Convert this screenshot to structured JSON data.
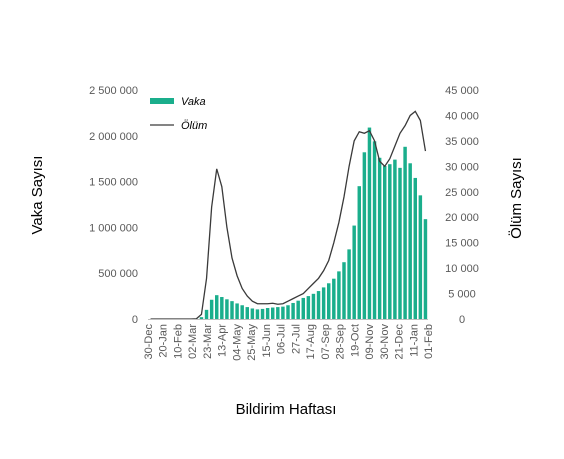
{
  "chart_data": {
    "type": "bar",
    "xlabel": "Bildirim Haftası",
    "ylabel": "Vaka Sayısı",
    "y2label": "Ölüm Sayısı",
    "x_tick_labels": [
      "30-Dec",
      "20-Jan",
      "10-Feb",
      "02-Mar",
      "23-Mar",
      "13-Apr",
      "04-May",
      "25-May",
      "15-Jun",
      "06-Jul",
      "27-Jul",
      "17-Aug",
      "07-Sep",
      "28-Sep",
      "19-Oct",
      "09-Nov",
      "30-Nov",
      "21-Dec",
      "11-Jan",
      "01-Feb"
    ],
    "ylim": [
      0,
      2500000
    ],
    "y_ticks": [
      0,
      500000,
      1000000,
      1500000,
      2000000,
      2500000
    ],
    "y_tick_labels": [
      "0",
      "500 000",
      "1 000 000",
      "1 500 000",
      "2 000 000",
      "2 500 000"
    ],
    "y2lim": [
      0,
      45000
    ],
    "y2_ticks": [
      0,
      5000,
      10000,
      15000,
      20000,
      25000,
      30000,
      35000,
      40000,
      45000
    ],
    "y2_tick_labels": [
      "0",
      "5 000",
      "10 000",
      "15 000",
      "20 000",
      "25 000",
      "30 000",
      "35 000",
      "40 000",
      "45 000"
    ],
    "legend_position": "top-left",
    "colors": {
      "bars": "#1AAE8C",
      "line": "#3A3A3A",
      "axis": "#BFBFBF"
    },
    "series": [
      {
        "name": "Vaka",
        "type": "bar",
        "axis": "left",
        "values": [
          0,
          0,
          0,
          0,
          0,
          0,
          0,
          0,
          0,
          2000,
          20000,
          100000,
          210000,
          260000,
          240000,
          215000,
          195000,
          170000,
          150000,
          130000,
          115000,
          105000,
          110000,
          120000,
          125000,
          130000,
          135000,
          150000,
          175000,
          200000,
          230000,
          250000,
          275000,
          305000,
          345000,
          390000,
          440000,
          520000,
          620000,
          760000,
          1020000,
          1450000,
          1820000,
          2090000,
          1940000,
          1760000,
          1670000,
          1690000,
          1740000,
          1650000,
          1880000,
          1700000,
          1540000,
          1350000,
          1090000
        ]
      },
      {
        "name": "Ölüm",
        "type": "line",
        "axis": "right",
        "values": [
          0,
          0,
          0,
          0,
          0,
          0,
          0,
          0,
          0,
          50,
          900,
          8000,
          22000,
          29500,
          26000,
          18000,
          12000,
          8500,
          6000,
          4500,
          3500,
          3000,
          3000,
          3000,
          3100,
          2900,
          3000,
          3500,
          4000,
          4500,
          5000,
          6000,
          7000,
          8000,
          9500,
          11500,
          15000,
          19000,
          24000,
          30000,
          35000,
          36800,
          36500,
          37000,
          35000,
          31000,
          30000,
          31500,
          34000,
          36500,
          38000,
          40000,
          40800,
          39000,
          33000
        ]
      }
    ]
  }
}
